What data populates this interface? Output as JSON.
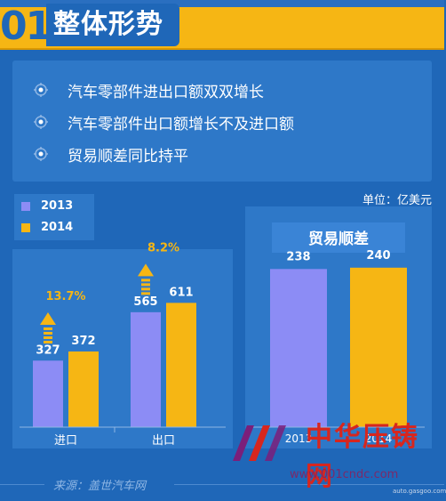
{
  "header": {
    "number": "01",
    "title": "整体形势"
  },
  "summary": {
    "items": [
      "汽车零部件进出口额双双增长",
      "汽车零部件出口额增长不及进口额",
      "贸易顺差同比持平"
    ]
  },
  "unit": "单位：亿美元",
  "legend": [
    {
      "label": "2013",
      "color": "#8c8cf5"
    },
    {
      "label": "2014",
      "color": "#f6b614"
    }
  ],
  "colors": {
    "y2013": "#8c8cf5",
    "y2014": "#f6b614",
    "growth": "#f6b614"
  },
  "chart_data": [
    {
      "type": "bar",
      "categories": [
        "进口",
        "出口"
      ],
      "series": [
        {
          "name": "2013",
          "values": [
            327,
            565
          ]
        },
        {
          "name": "2014",
          "values": [
            372,
            611
          ]
        }
      ],
      "growth_labels": [
        "13.7%",
        "8.2%"
      ],
      "ylim": [
        0,
        700
      ]
    },
    {
      "type": "bar",
      "title": "贸易顺差",
      "categories": [
        "2013",
        "2014"
      ],
      "values": [
        238,
        240
      ],
      "ylim": [
        0,
        300
      ]
    }
  ],
  "footer": {
    "source": "来源：盖世汽车网"
  },
  "watermark": {
    "brand": "中华压铸网",
    "url": "www.001cndc.com",
    "sub": "auto.gasgoo.com"
  }
}
